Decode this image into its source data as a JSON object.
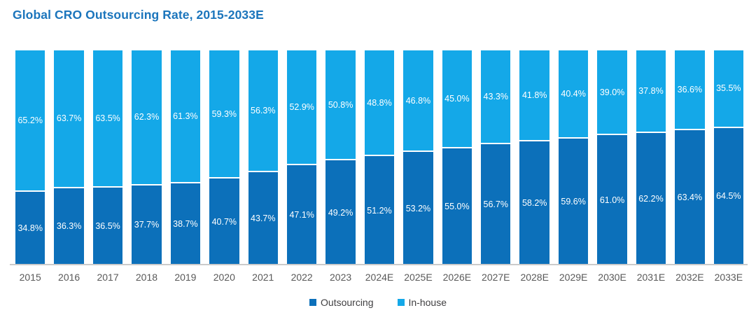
{
  "title": "Global CRO Outsourcing Rate, 2015-2033E",
  "colors": {
    "title": "#1B75BC",
    "outsourcing": "#0C70BA",
    "inhouse": "#14A8E8",
    "value_label": "#FFFFFF",
    "axis_label": "#595959",
    "legend_text": "#414042",
    "baseline": "#CBCBCB",
    "background": "#FFFFFF"
  },
  "legend": {
    "position": "bottom-center",
    "items": [
      {
        "label": "Outsourcing",
        "color": "#0C70BA"
      },
      {
        "label": "In-house",
        "color": "#14A8E8"
      }
    ]
  },
  "chart_data": {
    "type": "bar",
    "variant": "stacked-100-percent",
    "title": "Global CRO Outsourcing Rate, 2015-2033E",
    "xlabel": "",
    "ylabel": "",
    "ylim": [
      0,
      100
    ],
    "unit": "%",
    "grid": false,
    "y_axis_visible": false,
    "legend_position": "bottom",
    "categories": [
      "2015",
      "2016",
      "2017",
      "2018",
      "2019",
      "2020",
      "2021",
      "2022",
      "2023",
      "2024E",
      "2025E",
      "2026E",
      "2027E",
      "2028E",
      "2029E",
      "2030E",
      "2031E",
      "2032E",
      "2033E"
    ],
    "series": [
      {
        "name": "Outsourcing",
        "color": "#0C70BA",
        "stack_order": "bottom",
        "values": [
          34.8,
          36.3,
          36.5,
          37.7,
          38.7,
          40.7,
          43.7,
          47.1,
          49.2,
          51.2,
          53.2,
          55.0,
          56.7,
          58.2,
          59.6,
          61.0,
          62.2,
          63.4,
          64.5
        ],
        "labels": [
          "34.8%",
          "36.3%",
          "36.5%",
          "37.7%",
          "38.7%",
          "40.7%",
          "43.7%",
          "47.1%",
          "49.2%",
          "51.2%",
          "53.2%",
          "55.0%",
          "56.7%",
          "58.2%",
          "59.6%",
          "61.0%",
          "62.2%",
          "63.4%",
          "64.5%"
        ]
      },
      {
        "name": "In-house",
        "color": "#14A8E8",
        "stack_order": "top",
        "values": [
          65.2,
          63.7,
          63.5,
          62.3,
          61.3,
          59.3,
          56.3,
          52.9,
          50.8,
          48.8,
          46.8,
          45.0,
          43.3,
          41.8,
          40.4,
          39.0,
          37.8,
          36.6,
          35.5
        ],
        "labels": [
          "65.2%",
          "63.7%",
          "63.5%",
          "62.3%",
          "61.3%",
          "59.3%",
          "56.3%",
          "52.9%",
          "50.8%",
          "48.8%",
          "46.8%",
          "45.0%",
          "43.3%",
          "41.8%",
          "40.4%",
          "39.0%",
          "37.8%",
          "36.6%",
          "35.5%"
        ]
      }
    ]
  }
}
